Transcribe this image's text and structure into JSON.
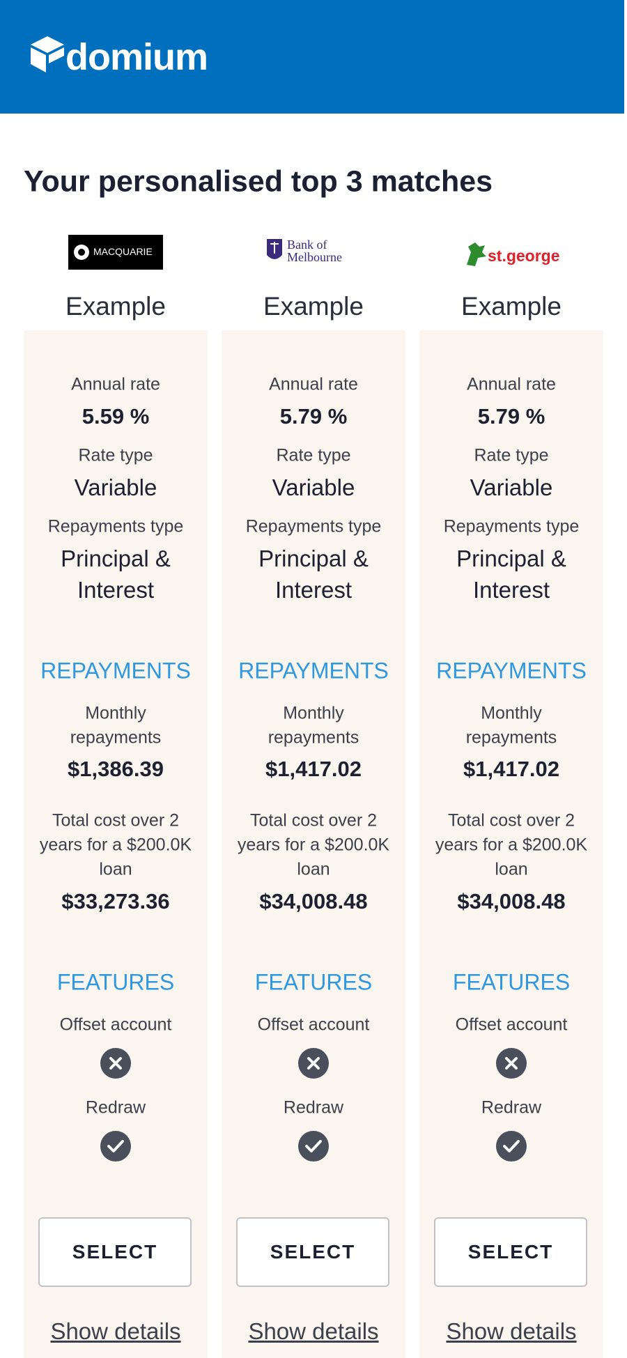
{
  "header": {
    "brand": "domium"
  },
  "title": "Your personalised top 3 matches",
  "cards": [
    {
      "bank": [
        "MACQUARIE"
      ],
      "name": "Example",
      "annual_rate_label": "Annual rate",
      "annual_rate": "5.59 %",
      "rate_type_label": "Rate type",
      "rate_type": "Variable",
      "repayments_type_label": "Repayments type",
      "repayments_type": [
        "Principal &",
        "Interest"
      ],
      "repayments_heading": "REPAYMENTS",
      "monthly_label": [
        "Monthly",
        "repayments"
      ],
      "monthly": "$1,386.39",
      "total_label": [
        "Total cost over 2",
        "years for a $200.0K",
        "loan"
      ],
      "total": "$33,273.36",
      "features_heading": "FEATURES",
      "features": [
        {
          "label": "Offset account",
          "available": false
        },
        {
          "label": "Redraw",
          "available": true
        }
      ],
      "button": "SELECT",
      "link": "Show details"
    },
    {
      "bank": [
        "Bank of",
        "Melbourne"
      ],
      "name": "Example",
      "annual_rate_label": "Annual rate",
      "annual_rate": "5.79 %",
      "rate_type_label": "Rate type",
      "rate_type": "Variable",
      "repayments_type_label": "Repayments type",
      "repayments_type": [
        "Principal &",
        "Interest"
      ],
      "repayments_heading": "REPAYMENTS",
      "monthly_label": [
        "Monthly",
        "repayments"
      ],
      "monthly": "$1,417.02",
      "total_label": [
        "Total cost over 2",
        "years for a $200.0K",
        "loan"
      ],
      "total": "$34,008.48",
      "features_heading": "FEATURES",
      "features": [
        {
          "label": "Offset account",
          "available": false
        },
        {
          "label": "Redraw",
          "available": true
        }
      ],
      "button": "SELECT",
      "link": "Show details"
    },
    {
      "bank": [
        "st.george"
      ],
      "name": "Example",
      "annual_rate_label": "Annual rate",
      "annual_rate": "5.79 %",
      "rate_type_label": "Rate type",
      "rate_type": "Variable",
      "repayments_type_label": "Repayments type",
      "repayments_type": [
        "Principal &",
        "Interest"
      ],
      "repayments_heading": "REPAYMENTS",
      "monthly_label": [
        "Monthly",
        "repayments"
      ],
      "monthly": "$1,417.02",
      "total_label": [
        "Total cost over 2",
        "years for a $200.0K",
        "loan"
      ],
      "total": "$34,008.48",
      "features_heading": "FEATURES",
      "features": [
        {
          "label": "Offset account",
          "available": false
        },
        {
          "label": "Redraw",
          "available": true
        }
      ],
      "button": "SELECT",
      "link": "Show details"
    }
  ]
}
